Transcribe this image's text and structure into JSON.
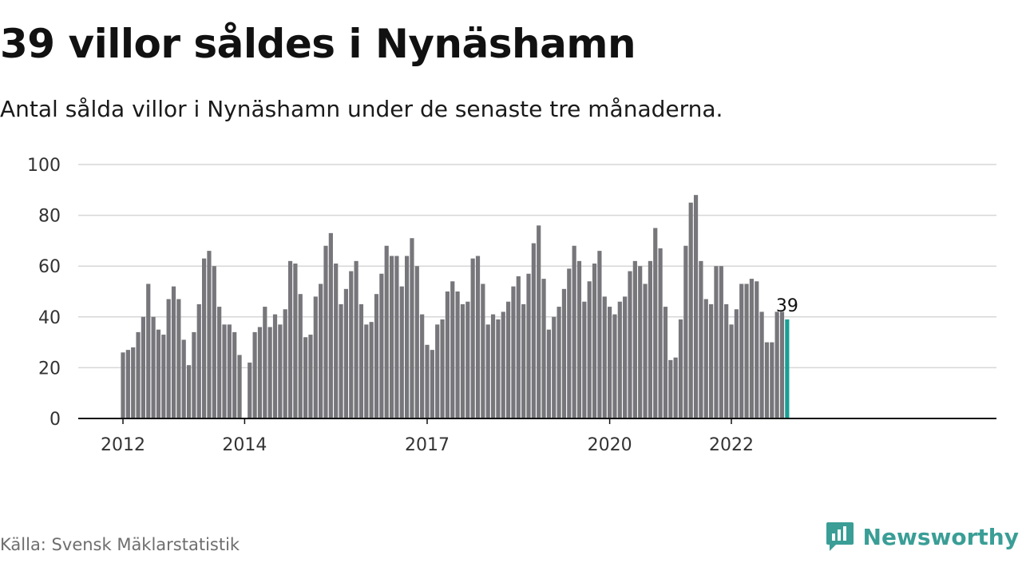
{
  "title": "39 villor såldes i Nynäshamn",
  "subtitle": "Antal sålda villor i Nynäshamn under de senaste tre månaderna.",
  "source": "Källa: Svensk Mäklarstatistik",
  "brand": "Newsworthy",
  "chart_data": {
    "type": "bar",
    "ylim": [
      0,
      100
    ],
    "y_ticks": [
      "0",
      "20",
      "40",
      "60",
      "80",
      "100"
    ],
    "x_ticks": [
      {
        "label": "2012",
        "year": 2012
      },
      {
        "label": "2014",
        "year": 2014
      },
      {
        "label": "2017",
        "year": 2017
      },
      {
        "label": "2020",
        "year": 2020
      },
      {
        "label": "2022",
        "year": 2022
      }
    ],
    "start": "2012-01",
    "values": [
      26,
      27,
      28,
      34,
      40,
      53,
      40,
      35,
      33,
      47,
      52,
      47,
      31,
      21,
      34,
      45,
      63,
      66,
      60,
      44,
      37,
      37,
      34,
      25,
      0,
      22,
      34,
      36,
      44,
      36,
      41,
      37,
      43,
      62,
      61,
      49,
      32,
      33,
      48,
      53,
      68,
      73,
      61,
      45,
      51,
      58,
      62,
      45,
      37,
      38,
      49,
      57,
      68,
      64,
      64,
      52,
      64,
      71,
      60,
      41,
      29,
      27,
      37,
      39,
      50,
      54,
      50,
      45,
      46,
      63,
      64,
      53,
      37,
      41,
      39,
      42,
      46,
      52,
      56,
      45,
      57,
      69,
      76,
      55,
      35,
      40,
      44,
      51,
      59,
      68,
      62,
      46,
      54,
      61,
      66,
      48,
      44,
      41,
      46,
      48,
      58,
      62,
      60,
      53,
      62,
      75,
      67,
      44,
      23,
      24,
      39,
      68,
      85,
      88,
      62,
      47,
      45,
      60,
      60,
      45,
      37,
      43,
      53,
      53,
      55,
      54,
      42,
      30,
      30,
      42,
      42,
      39
    ],
    "highlight_label": "39",
    "colors": {
      "bar": "#77767b",
      "highlight": "#1a9e95",
      "grid": "#d7d7d7",
      "axis": "#111111"
    }
  }
}
